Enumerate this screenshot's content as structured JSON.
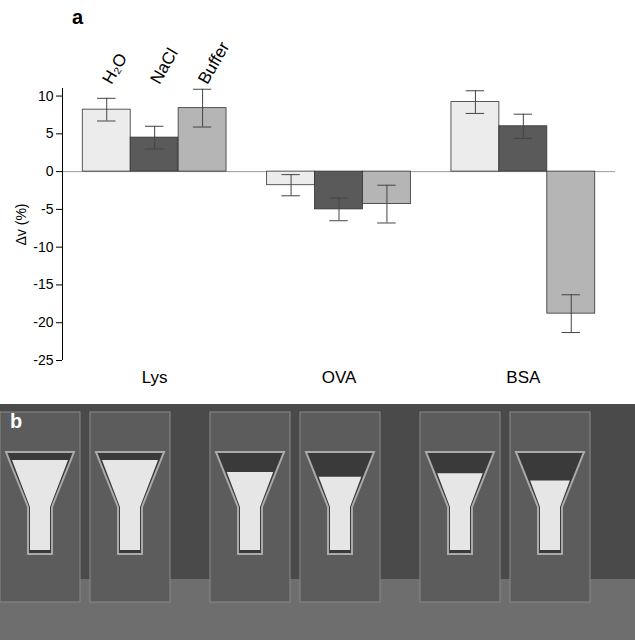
{
  "chart_data": {
    "type": "bar",
    "panel_label": "a",
    "y_label": "Δv (%)",
    "categories": [
      "Lys",
      "OVA",
      "BSA"
    ],
    "series": [
      {
        "name": "H₂O",
        "color": "#ececec",
        "values": [
          8.2,
          -1.8,
          9.2
        ],
        "errors": [
          1.5,
          1.4,
          1.5
        ]
      },
      {
        "name": "NaCl",
        "color": "#5a5a5a",
        "values": [
          4.5,
          -5.0,
          6.0
        ],
        "errors": [
          1.5,
          1.5,
          1.6
        ]
      },
      {
        "name": "Buffer",
        "color": "#b5b5b5",
        "values": [
          8.4,
          -4.3,
          -18.8
        ],
        "errors": [
          2.5,
          2.5,
          2.5
        ]
      }
    ],
    "ylim": [
      -25,
      11
    ],
    "yticks": [
      -25,
      -20,
      -15,
      -10,
      -5,
      0,
      5,
      10
    ],
    "legend": "top-left",
    "grid": false
  },
  "image": {
    "panel_label": "b"
  }
}
